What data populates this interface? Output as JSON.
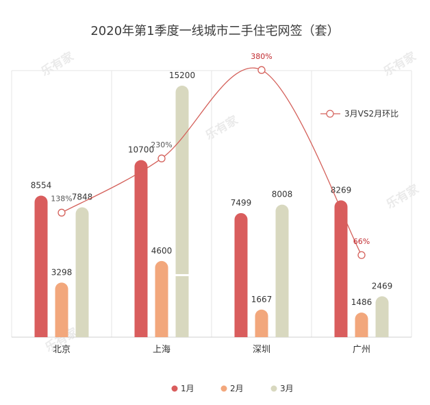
{
  "chart_data": {
    "type": "bar",
    "title": "2020年第1季度一线城市二手住宅网签（套）",
    "categories": [
      "北京",
      "上海",
      "深圳",
      "广州"
    ],
    "series": [
      {
        "name": "1月",
        "values": [
          8554,
          10700,
          7499,
          8269
        ],
        "color": "#d95d5d"
      },
      {
        "name": "2月",
        "values": [
          3298,
          4600,
          1667,
          1486
        ],
        "color": "#f2a77c"
      },
      {
        "name": "3月",
        "values": [
          7848,
          15200,
          8008,
          2469
        ],
        "color": "#d8d8bf"
      }
    ],
    "line_series": {
      "name": "3月VS2月环比",
      "values": [
        138,
        230,
        380,
        66
      ],
      "labels": [
        "138%",
        "230%",
        "380%",
        "66%"
      ],
      "highlight": [
        false,
        false,
        true,
        true
      ],
      "color": "#d4605a",
      "highlight_color": "#c0282d"
    },
    "ylim": [
      0,
      15200
    ],
    "grid": false,
    "legend_position": "bottom-center",
    "line_legend_position": "right"
  }
}
